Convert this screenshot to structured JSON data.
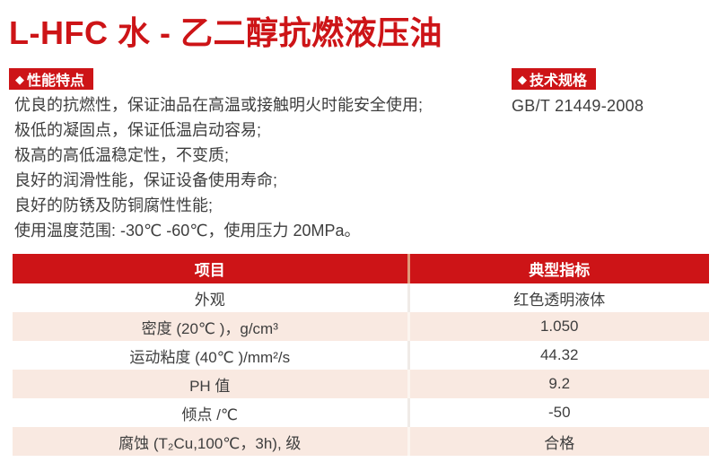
{
  "page": {
    "title": "L-HFC 水 - 乙二醇抗燃液压油"
  },
  "colors": {
    "brand_red": "#cd1417",
    "row_pink": "#f9e9e1",
    "text_dark": "#3e3e3e",
    "header_divider": "#e0997a",
    "body_divider": "#f0ebe7"
  },
  "features": {
    "icon": "◆",
    "heading": "性能特点",
    "items": [
      "优良的抗燃性，保证油品在高温或接触明火时能安全使用;",
      "极低的凝固点，保证低温启动容易;",
      "极高的高低温稳定性，不变质;",
      "良好的润滑性能，保证设备使用寿命;",
      "良好的防锈及防铜腐性性能;",
      "使用温度范围: -30℃ -60℃，使用压力 20MPa。"
    ]
  },
  "specs": {
    "icon": "◆",
    "heading": "技术规格",
    "standard": "GB/T 21449-2008"
  },
  "table": {
    "headers": [
      "项目",
      "典型指标"
    ],
    "rows": [
      [
        "外观",
        "红色透明液体"
      ],
      [
        "密度 (20℃ )，g/cm³",
        "1.050"
      ],
      [
        "运动粘度 (40℃ )/mm²/s",
        "44.32"
      ],
      [
        "PH 值",
        "9.2"
      ],
      [
        "倾点 /℃",
        "-50"
      ],
      [
        "腐蚀 (T₂Cu,100℃，3h), 级",
        "合格"
      ]
    ]
  }
}
